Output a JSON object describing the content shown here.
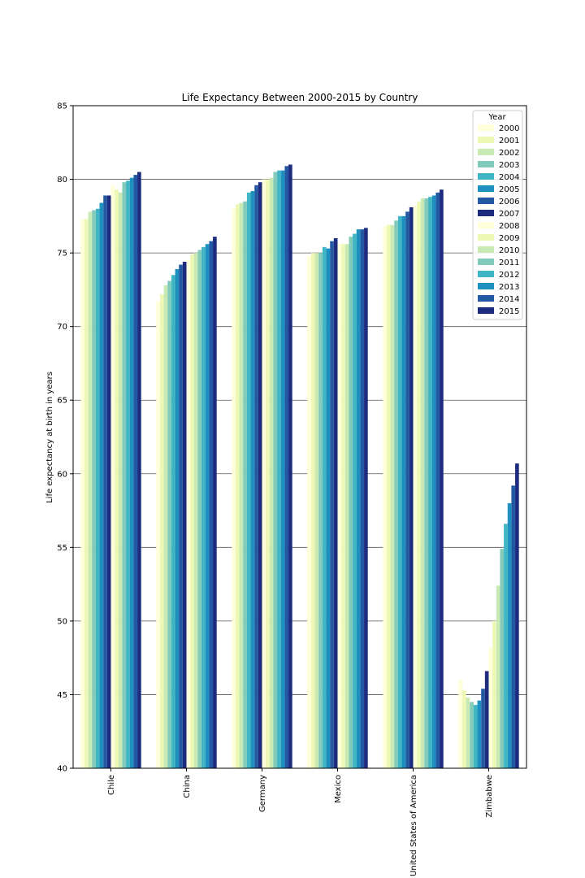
{
  "chart_data": {
    "type": "bar",
    "title": "Life Expectancy Between 2000-2015 by Country",
    "xlabel": "",
    "ylabel": "Life expectancy at birth in years",
    "ylim": [
      40,
      85
    ],
    "yticks": [
      40,
      45,
      50,
      55,
      60,
      65,
      70,
      75,
      80,
      85
    ],
    "grid": "horizontal",
    "legend": {
      "title": "Year",
      "placement": "top-right"
    },
    "categories": [
      "Chile",
      "China",
      "Germany",
      "Mexico",
      "United States of America",
      "Zimbabwe"
    ],
    "series": [
      {
        "name": "2000",
        "color": "#ffffd9",
        "values": [
          77.3,
          71.7,
          78.0,
          74.8,
          76.8,
          46.0
        ]
      },
      {
        "name": "2001",
        "color": "#eef8b5",
        "values": [
          77.3,
          72.2,
          78.3,
          75.0,
          76.9,
          45.3
        ]
      },
      {
        "name": "2002",
        "color": "#c9e9b4",
        "values": [
          77.8,
          72.8,
          78.4,
          75.0,
          76.9,
          44.8
        ]
      },
      {
        "name": "2003",
        "color": "#82cbbb",
        "values": [
          77.9,
          73.1,
          78.5,
          75.0,
          77.2,
          44.5
        ]
      },
      {
        "name": "2004",
        "color": "#40b5c4",
        "values": [
          78.0,
          73.5,
          79.1,
          75.4,
          77.5,
          44.3
        ]
      },
      {
        "name": "2005",
        "color": "#1e90bf",
        "values": [
          78.4,
          73.9,
          79.2,
          75.3,
          77.5,
          44.6
        ]
      },
      {
        "name": "2006",
        "color": "#2359a3",
        "values": [
          78.9,
          74.2,
          79.6,
          75.8,
          77.8,
          45.4
        ]
      },
      {
        "name": "2007",
        "color": "#1e2c80",
        "values": [
          78.9,
          74.4,
          79.8,
          76.0,
          78.1,
          46.6
        ]
      },
      {
        "name": "2008",
        "color": "#ffffd9",
        "values": [
          79.6,
          74.5,
          80.0,
          75.6,
          78.2,
          48.2
        ]
      },
      {
        "name": "2009",
        "color": "#eef8b5",
        "values": [
          79.3,
          74.9,
          80.0,
          75.6,
          78.5,
          50.0
        ]
      },
      {
        "name": "2010",
        "color": "#c9e9b4",
        "values": [
          79.1,
          75.0,
          80.1,
          75.6,
          78.7,
          52.4
        ]
      },
      {
        "name": "2011",
        "color": "#82cbbb",
        "values": [
          79.8,
          75.2,
          80.5,
          76.1,
          78.7,
          54.9
        ]
      },
      {
        "name": "2012",
        "color": "#40b5c4",
        "values": [
          79.9,
          75.4,
          80.6,
          76.3,
          78.8,
          56.6
        ]
      },
      {
        "name": "2013",
        "color": "#1e90bf",
        "values": [
          80.1,
          75.6,
          80.6,
          76.6,
          78.9,
          58.0
        ]
      },
      {
        "name": "2014",
        "color": "#2359a3",
        "values": [
          80.3,
          75.8,
          80.9,
          76.6,
          79.1,
          59.2
        ]
      },
      {
        "name": "2015",
        "color": "#1e2c80",
        "values": [
          80.5,
          76.1,
          81.0,
          76.7,
          79.3,
          60.7
        ]
      }
    ]
  }
}
